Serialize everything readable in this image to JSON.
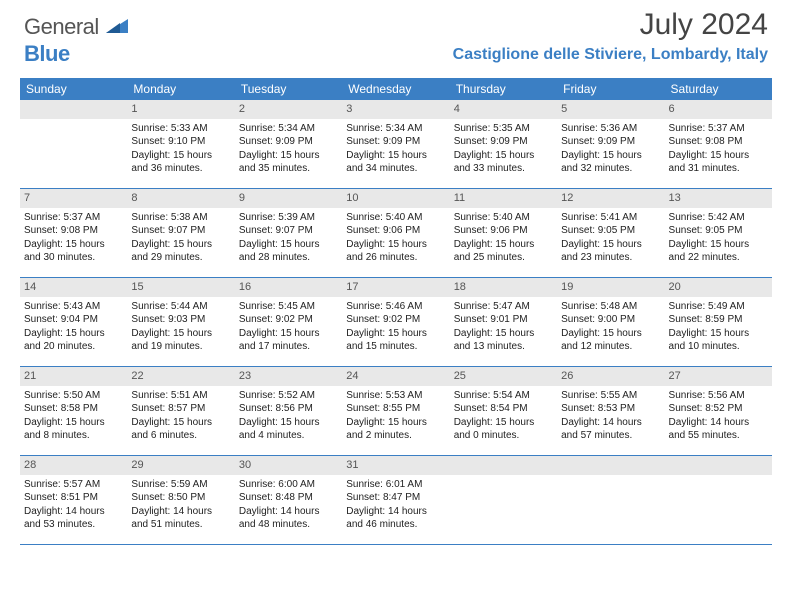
{
  "logo": {
    "text1": "General",
    "text2": "Blue"
  },
  "title": "July 2024",
  "location": "Castiglione delle Stiviere, Lombardy, Italy",
  "colors": {
    "header_bg": "#3b7fc4",
    "header_fg": "#ffffff",
    "daynum_bg": "#e8e8e8",
    "daynum_fg": "#555555",
    "text": "#222222",
    "row_border": "#3b7fc4"
  },
  "day_names": [
    "Sunday",
    "Monday",
    "Tuesday",
    "Wednesday",
    "Thursday",
    "Friday",
    "Saturday"
  ],
  "weeks": [
    [
      {
        "num": "",
        "lines": []
      },
      {
        "num": "1",
        "lines": [
          "Sunrise: 5:33 AM",
          "Sunset: 9:10 PM",
          "Daylight: 15 hours",
          "and 36 minutes."
        ]
      },
      {
        "num": "2",
        "lines": [
          "Sunrise: 5:34 AM",
          "Sunset: 9:09 PM",
          "Daylight: 15 hours",
          "and 35 minutes."
        ]
      },
      {
        "num": "3",
        "lines": [
          "Sunrise: 5:34 AM",
          "Sunset: 9:09 PM",
          "Daylight: 15 hours",
          "and 34 minutes."
        ]
      },
      {
        "num": "4",
        "lines": [
          "Sunrise: 5:35 AM",
          "Sunset: 9:09 PM",
          "Daylight: 15 hours",
          "and 33 minutes."
        ]
      },
      {
        "num": "5",
        "lines": [
          "Sunrise: 5:36 AM",
          "Sunset: 9:09 PM",
          "Daylight: 15 hours",
          "and 32 minutes."
        ]
      },
      {
        "num": "6",
        "lines": [
          "Sunrise: 5:37 AM",
          "Sunset: 9:08 PM",
          "Daylight: 15 hours",
          "and 31 minutes."
        ]
      }
    ],
    [
      {
        "num": "7",
        "lines": [
          "Sunrise: 5:37 AM",
          "Sunset: 9:08 PM",
          "Daylight: 15 hours",
          "and 30 minutes."
        ]
      },
      {
        "num": "8",
        "lines": [
          "Sunrise: 5:38 AM",
          "Sunset: 9:07 PM",
          "Daylight: 15 hours",
          "and 29 minutes."
        ]
      },
      {
        "num": "9",
        "lines": [
          "Sunrise: 5:39 AM",
          "Sunset: 9:07 PM",
          "Daylight: 15 hours",
          "and 28 minutes."
        ]
      },
      {
        "num": "10",
        "lines": [
          "Sunrise: 5:40 AM",
          "Sunset: 9:06 PM",
          "Daylight: 15 hours",
          "and 26 minutes."
        ]
      },
      {
        "num": "11",
        "lines": [
          "Sunrise: 5:40 AM",
          "Sunset: 9:06 PM",
          "Daylight: 15 hours",
          "and 25 minutes."
        ]
      },
      {
        "num": "12",
        "lines": [
          "Sunrise: 5:41 AM",
          "Sunset: 9:05 PM",
          "Daylight: 15 hours",
          "and 23 minutes."
        ]
      },
      {
        "num": "13",
        "lines": [
          "Sunrise: 5:42 AM",
          "Sunset: 9:05 PM",
          "Daylight: 15 hours",
          "and 22 minutes."
        ]
      }
    ],
    [
      {
        "num": "14",
        "lines": [
          "Sunrise: 5:43 AM",
          "Sunset: 9:04 PM",
          "Daylight: 15 hours",
          "and 20 minutes."
        ]
      },
      {
        "num": "15",
        "lines": [
          "Sunrise: 5:44 AM",
          "Sunset: 9:03 PM",
          "Daylight: 15 hours",
          "and 19 minutes."
        ]
      },
      {
        "num": "16",
        "lines": [
          "Sunrise: 5:45 AM",
          "Sunset: 9:02 PM",
          "Daylight: 15 hours",
          "and 17 minutes."
        ]
      },
      {
        "num": "17",
        "lines": [
          "Sunrise: 5:46 AM",
          "Sunset: 9:02 PM",
          "Daylight: 15 hours",
          "and 15 minutes."
        ]
      },
      {
        "num": "18",
        "lines": [
          "Sunrise: 5:47 AM",
          "Sunset: 9:01 PM",
          "Daylight: 15 hours",
          "and 13 minutes."
        ]
      },
      {
        "num": "19",
        "lines": [
          "Sunrise: 5:48 AM",
          "Sunset: 9:00 PM",
          "Daylight: 15 hours",
          "and 12 minutes."
        ]
      },
      {
        "num": "20",
        "lines": [
          "Sunrise: 5:49 AM",
          "Sunset: 8:59 PM",
          "Daylight: 15 hours",
          "and 10 minutes."
        ]
      }
    ],
    [
      {
        "num": "21",
        "lines": [
          "Sunrise: 5:50 AM",
          "Sunset: 8:58 PM",
          "Daylight: 15 hours",
          "and 8 minutes."
        ]
      },
      {
        "num": "22",
        "lines": [
          "Sunrise: 5:51 AM",
          "Sunset: 8:57 PM",
          "Daylight: 15 hours",
          "and 6 minutes."
        ]
      },
      {
        "num": "23",
        "lines": [
          "Sunrise: 5:52 AM",
          "Sunset: 8:56 PM",
          "Daylight: 15 hours",
          "and 4 minutes."
        ]
      },
      {
        "num": "24",
        "lines": [
          "Sunrise: 5:53 AM",
          "Sunset: 8:55 PM",
          "Daylight: 15 hours",
          "and 2 minutes."
        ]
      },
      {
        "num": "25",
        "lines": [
          "Sunrise: 5:54 AM",
          "Sunset: 8:54 PM",
          "Daylight: 15 hours",
          "and 0 minutes."
        ]
      },
      {
        "num": "26",
        "lines": [
          "Sunrise: 5:55 AM",
          "Sunset: 8:53 PM",
          "Daylight: 14 hours",
          "and 57 minutes."
        ]
      },
      {
        "num": "27",
        "lines": [
          "Sunrise: 5:56 AM",
          "Sunset: 8:52 PM",
          "Daylight: 14 hours",
          "and 55 minutes."
        ]
      }
    ],
    [
      {
        "num": "28",
        "lines": [
          "Sunrise: 5:57 AM",
          "Sunset: 8:51 PM",
          "Daylight: 14 hours",
          "and 53 minutes."
        ]
      },
      {
        "num": "29",
        "lines": [
          "Sunrise: 5:59 AM",
          "Sunset: 8:50 PM",
          "Daylight: 14 hours",
          "and 51 minutes."
        ]
      },
      {
        "num": "30",
        "lines": [
          "Sunrise: 6:00 AM",
          "Sunset: 8:48 PM",
          "Daylight: 14 hours",
          "and 48 minutes."
        ]
      },
      {
        "num": "31",
        "lines": [
          "Sunrise: 6:01 AM",
          "Sunset: 8:47 PM",
          "Daylight: 14 hours",
          "and 46 minutes."
        ]
      },
      {
        "num": "",
        "lines": []
      },
      {
        "num": "",
        "lines": []
      },
      {
        "num": "",
        "lines": []
      }
    ]
  ]
}
